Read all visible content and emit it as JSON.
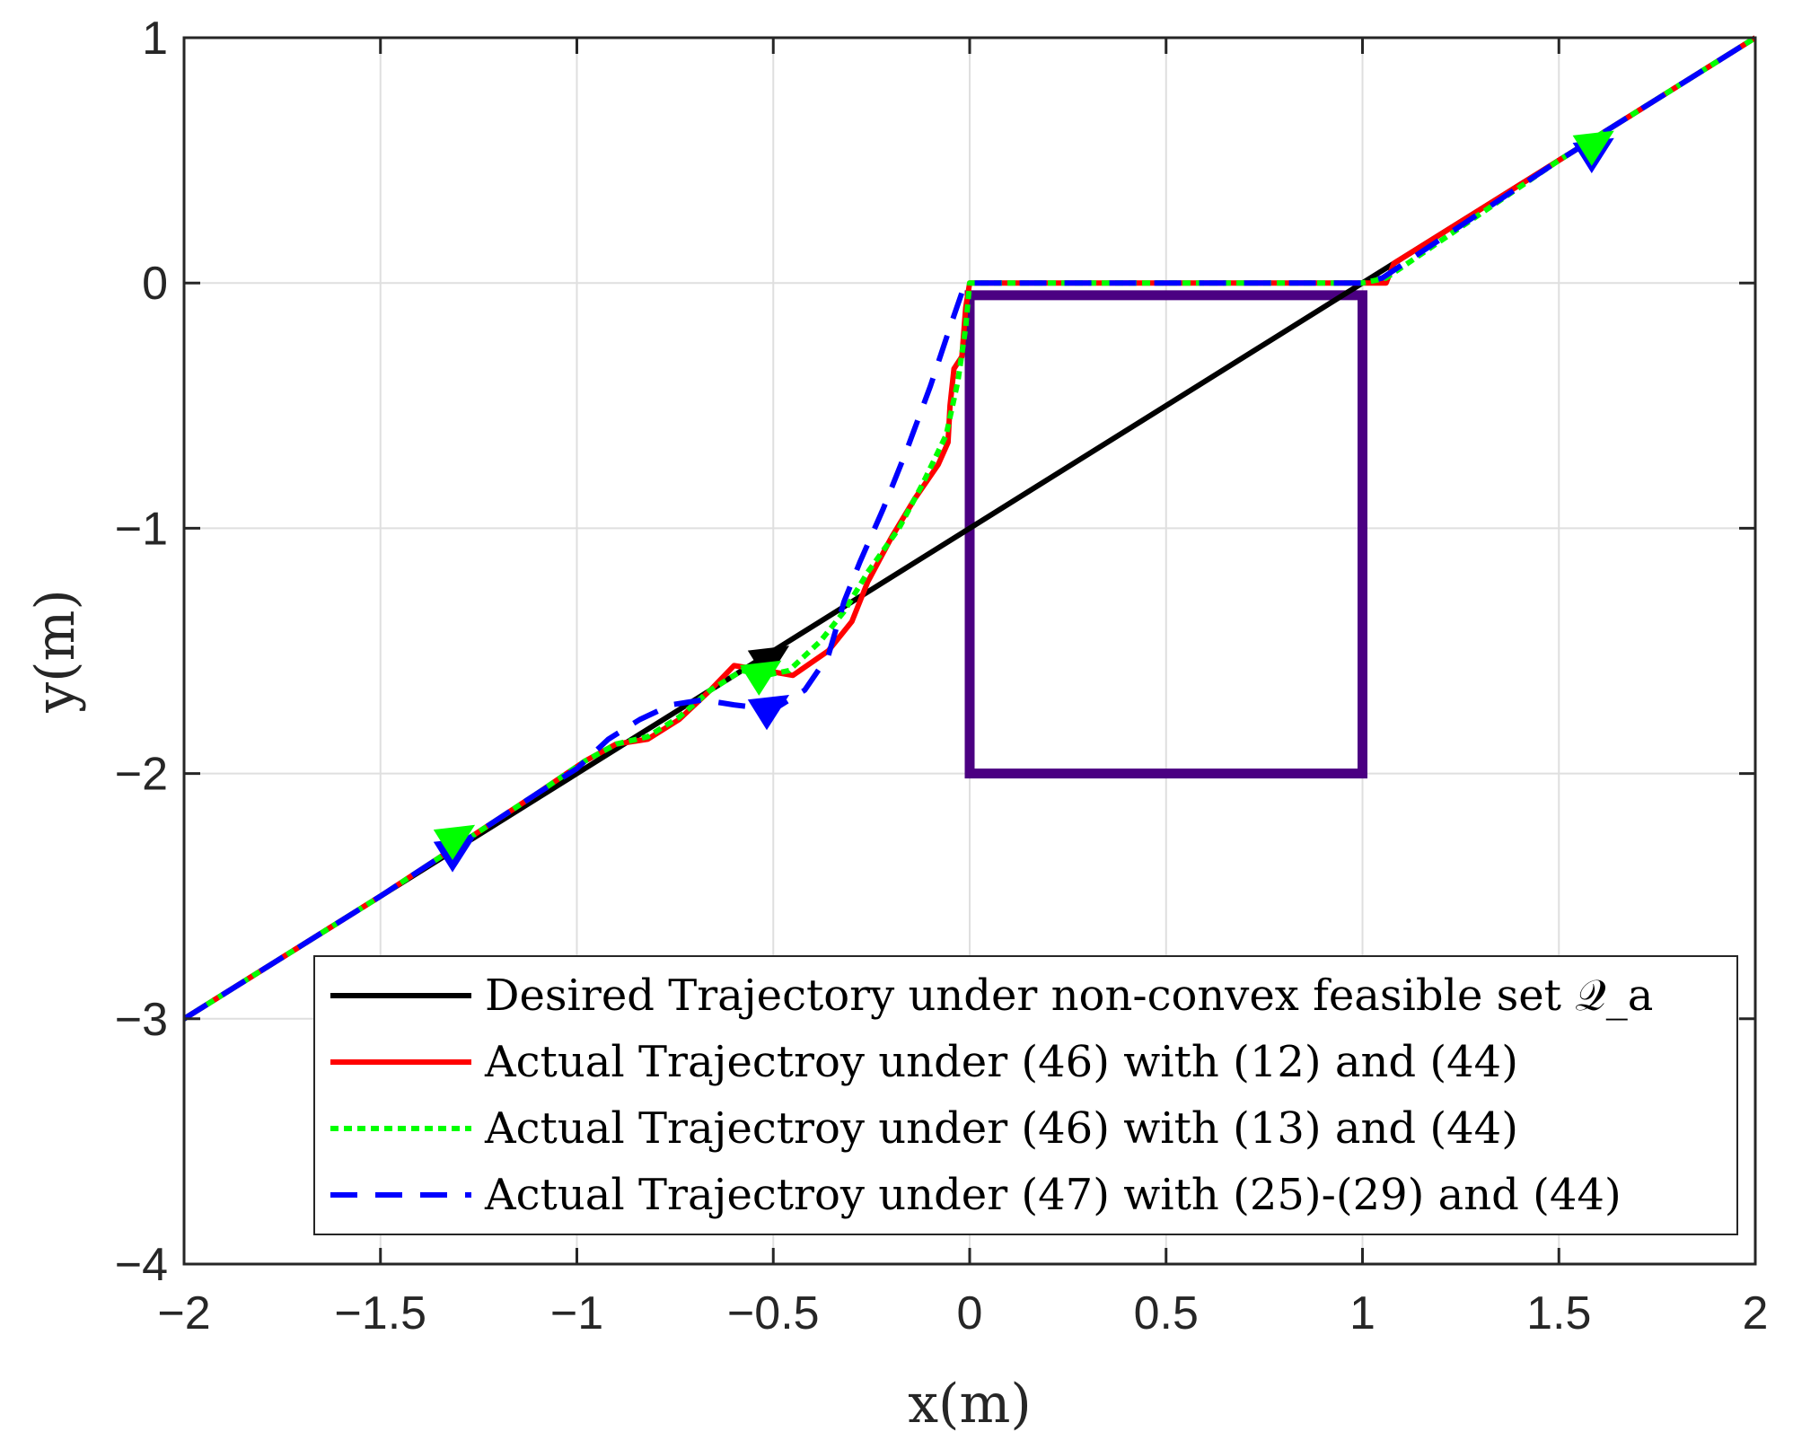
{
  "chart_data": {
    "type": "line",
    "xlabel": "x(m)",
    "ylabel": "y(m)",
    "xlim": [
      -2,
      2
    ],
    "ylim": [
      -4,
      1
    ],
    "xticks": [
      -2,
      -1.5,
      -1,
      -0.5,
      0,
      0.5,
      1,
      1.5,
      2
    ],
    "xtick_labels": [
      "−2",
      "−1.5",
      "−1",
      "−0.5",
      "0",
      "0.5",
      "1",
      "1.5",
      "2"
    ],
    "yticks": [
      -4,
      -3,
      -2,
      -1,
      0,
      1
    ],
    "ytick_labels": [
      "−4",
      "−3",
      "−2",
      "−1",
      "0",
      "1"
    ],
    "grid": true,
    "legend_position": "bottom-right",
    "obstacle": {
      "shape": "rectangle",
      "x": [
        0,
        1
      ],
      "y": [
        -2,
        -0.05
      ],
      "color": "#4B0082"
    },
    "series": [
      {
        "name": "Desired Trajectory under non-convex feasible set 𝒬_a",
        "color": "#000000",
        "style": "solid",
        "x": [
          -2,
          -1.5,
          -1,
          -0.5,
          0,
          0.5,
          1,
          1.5,
          2
        ],
        "y": [
          -3,
          -2.5,
          -2,
          -1.5,
          -1,
          -0.5,
          0,
          0.5,
          1
        ]
      },
      {
        "name": "Actual Trajectroy under (46) with (12) and (44)",
        "color": "#ff0000",
        "style": "solid",
        "x": [
          -2,
          -1.5,
          -1.1,
          -0.98,
          -0.9,
          -0.82,
          -0.74,
          -0.66,
          -0.6,
          -0.52,
          -0.45,
          -0.36,
          -0.3,
          -0.26,
          -0.2,
          -0.14,
          -0.08,
          -0.055,
          -0.05,
          -0.04,
          -0.02,
          -0.01,
          0,
          0.5,
          1,
          1.06,
          1.08,
          1.5,
          2
        ],
        "y": [
          -3,
          -2.5,
          -2.08,
          -1.95,
          -1.88,
          -1.86,
          -1.78,
          -1.66,
          -1.56,
          -1.58,
          -1.6,
          -1.5,
          -1.38,
          -1.22,
          -1.04,
          -0.88,
          -0.74,
          -0.65,
          -0.5,
          -0.35,
          -0.3,
          -0.1,
          0,
          0,
          0,
          0,
          0.08,
          0.5,
          1
        ]
      },
      {
        "name": "Actual Trajectroy under (46) with (13) and (44)",
        "color": "#00ff00",
        "style": "dotted",
        "x": [
          -2,
          -1.5,
          -1.1,
          -0.98,
          -0.9,
          -0.82,
          -0.74,
          -0.66,
          -0.58,
          -0.52,
          -0.46,
          -0.38,
          -0.32,
          -0.26,
          -0.18,
          -0.12,
          -0.06,
          -0.03,
          -0.01,
          0,
          0.5,
          1,
          1.06,
          1.5,
          2
        ],
        "y": [
          -3,
          -2.5,
          -2.08,
          -1.95,
          -1.88,
          -1.85,
          -1.77,
          -1.66,
          -1.58,
          -1.6,
          -1.58,
          -1.46,
          -1.34,
          -1.18,
          -1.0,
          -0.82,
          -0.62,
          -0.4,
          -0.18,
          0,
          0,
          0,
          0.02,
          0.5,
          1
        ]
      },
      {
        "name": "Actual Trajectroy under (47) with (25)-(29) and (44)",
        "color": "#0000ff",
        "style": "dashed",
        "x": [
          -2,
          -1.5,
          -1.1,
          -1.0,
          -0.92,
          -0.84,
          -0.76,
          -0.68,
          -0.6,
          -0.5,
          -0.42,
          -0.36,
          -0.32,
          -0.28,
          -0.22,
          -0.16,
          -0.1,
          -0.05,
          -0.02,
          0,
          0.5,
          1,
          1.05,
          1.5,
          2
        ],
        "y": [
          -3,
          -2.5,
          -2.08,
          -1.98,
          -1.86,
          -1.78,
          -1.72,
          -1.7,
          -1.72,
          -1.74,
          -1.66,
          -1.52,
          -1.3,
          -1.14,
          -0.92,
          -0.68,
          -0.42,
          -0.18,
          -0.04,
          0,
          0,
          0,
          0.02,
          0.5,
          1
        ]
      }
    ],
    "arrows": [
      {
        "x": 1.6,
        "y": 0.55,
        "color": "#0000ff"
      },
      {
        "x": 1.6,
        "y": 0.58,
        "color": "#00ff00"
      },
      {
        "x": -1.3,
        "y": -2.3,
        "color": "#0000ff"
      },
      {
        "x": -1.3,
        "y": -2.25,
        "color": "#00ff00"
      },
      {
        "x": -0.5,
        "y": -1.52,
        "color": "#000000"
      },
      {
        "x": -0.52,
        "y": -1.58,
        "color": "#00ff00"
      },
      {
        "x": -0.5,
        "y": -1.72,
        "color": "#0000ff"
      }
    ]
  }
}
